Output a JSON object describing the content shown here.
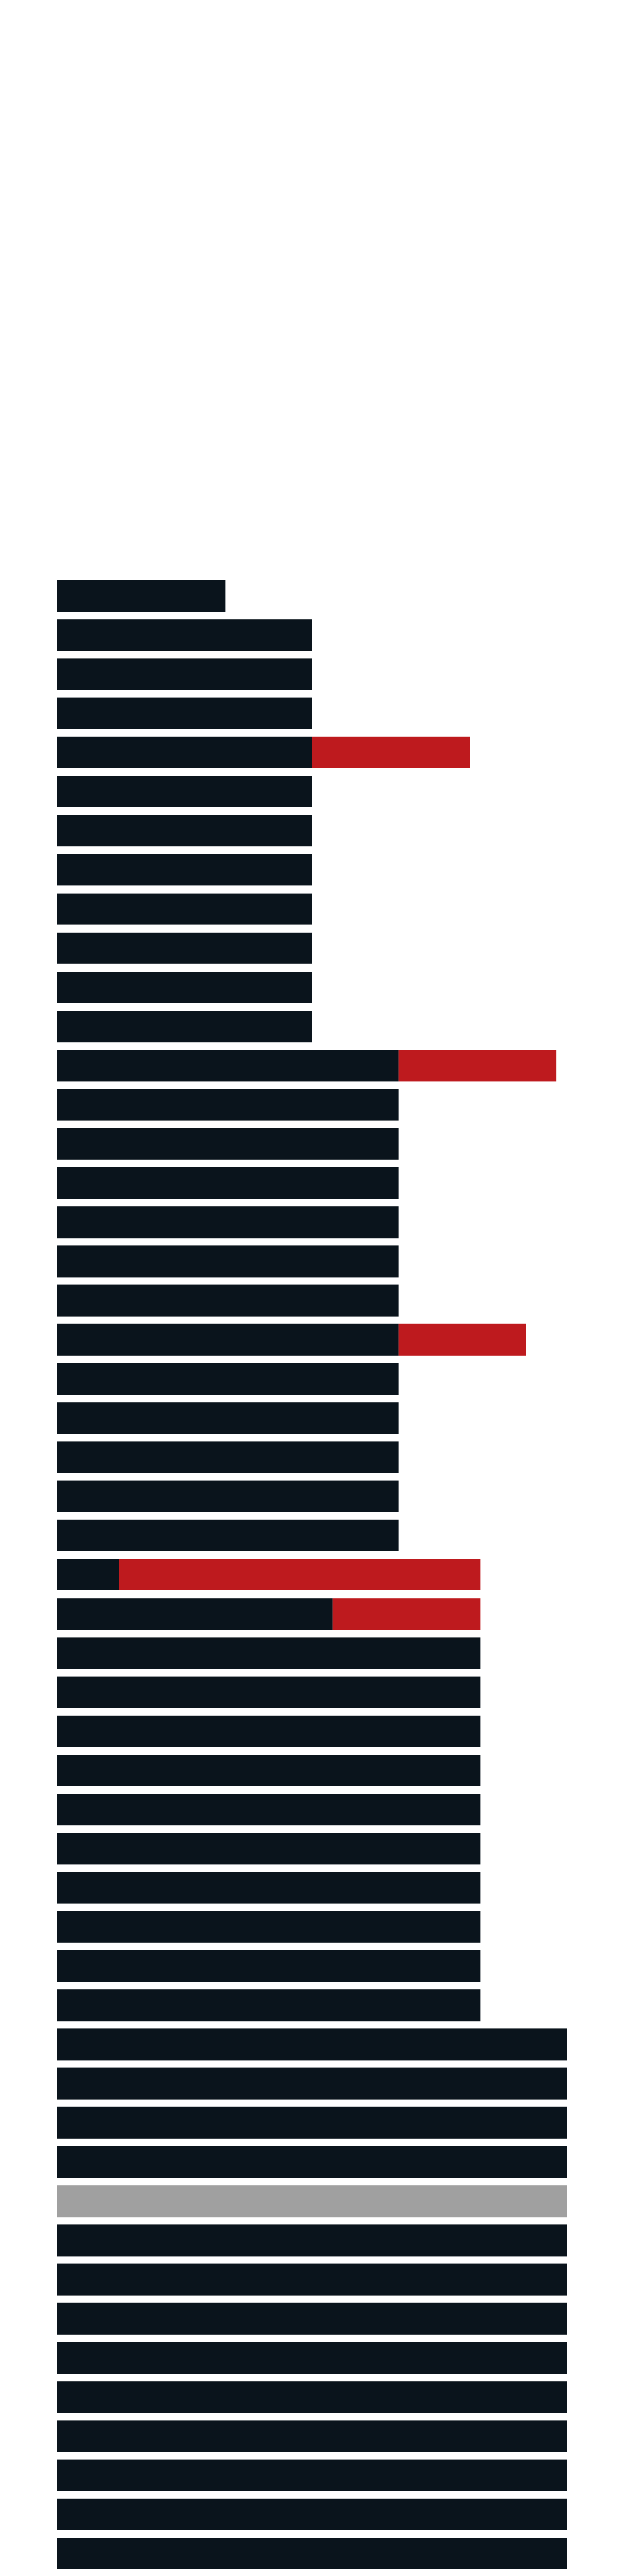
{
  "chart_data": {
    "type": "bar",
    "orientation": "horizontal",
    "stacked": true,
    "x_range": [
      0,
      100
    ],
    "grid": false,
    "legend": "none",
    "series": [
      {
        "color": "#0a141c",
        "values": [
          33,
          50,
          50,
          50,
          50,
          50,
          50,
          50,
          50,
          50,
          50,
          50,
          67,
          67,
          67,
          67,
          67,
          67,
          67,
          67,
          67,
          67,
          67,
          67,
          67,
          12,
          54,
          83,
          83,
          83,
          83,
          83,
          83,
          83,
          83,
          83,
          83,
          100,
          100,
          100,
          100,
          0,
          100,
          100,
          100,
          100,
          100,
          100,
          100,
          100,
          100,
          100,
          100
        ]
      },
      {
        "color": "#be1a1e",
        "values": [
          0,
          0,
          0,
          0,
          31,
          0,
          0,
          0,
          0,
          0,
          0,
          0,
          31,
          0,
          0,
          0,
          0,
          0,
          0,
          25,
          0,
          0,
          0,
          0,
          0,
          71,
          29,
          0,
          0,
          0,
          0,
          0,
          0,
          0,
          0,
          0,
          0,
          0,
          0,
          0,
          0,
          0,
          0,
          0,
          0,
          0,
          0,
          0,
          0,
          0,
          0,
          0,
          0
        ]
      },
      {
        "color": "#a0a0a0",
        "values": [
          0,
          0,
          0,
          0,
          0,
          0,
          0,
          0,
          0,
          0,
          0,
          0,
          0,
          0,
          0,
          0,
          0,
          0,
          0,
          0,
          0,
          0,
          0,
          0,
          0,
          0,
          0,
          0,
          0,
          0,
          0,
          0,
          0,
          0,
          0,
          0,
          0,
          0,
          0,
          0,
          0,
          100,
          0,
          0,
          0,
          0,
          0,
          0,
          0,
          0,
          0,
          0,
          0
        ]
      }
    ],
    "colors": {
      "primary": "#0a141c",
      "highlight": "#be1a1e",
      "muted": "#a0a0a0"
    }
  }
}
